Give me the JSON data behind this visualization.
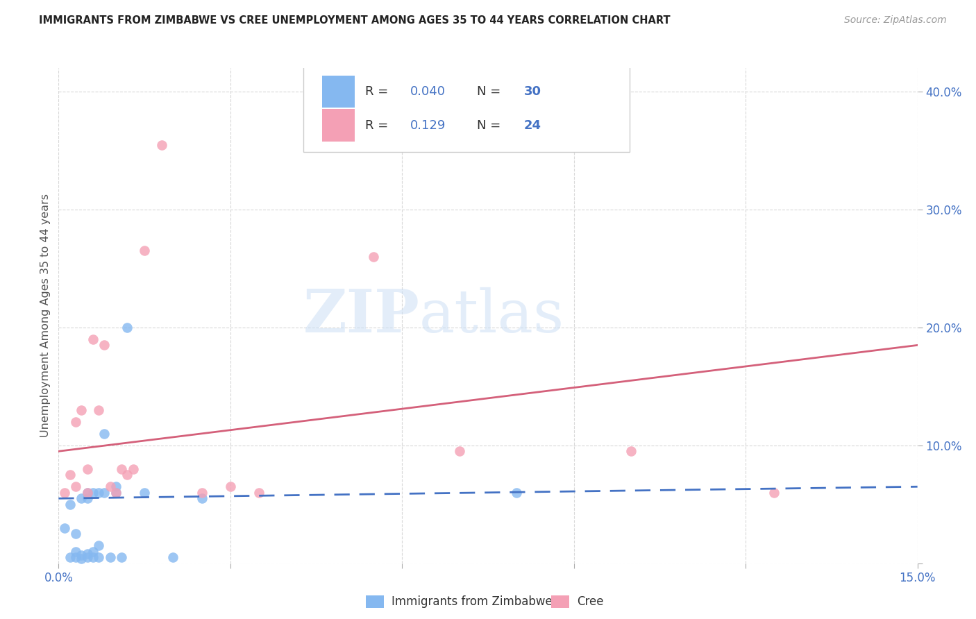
{
  "title": "IMMIGRANTS FROM ZIMBABWE VS CREE UNEMPLOYMENT AMONG AGES 35 TO 44 YEARS CORRELATION CHART",
  "source": "Source: ZipAtlas.com",
  "ylabel": "Unemployment Among Ages 35 to 44 years",
  "xlim": [
    0.0,
    0.15
  ],
  "ylim": [
    0.0,
    0.42
  ],
  "xticks": [
    0.0,
    0.03,
    0.06,
    0.09,
    0.12,
    0.15
  ],
  "yticks": [
    0.0,
    0.1,
    0.2,
    0.3,
    0.4
  ],
  "background_color": "#ffffff",
  "grid_color": "#d8d8d8",
  "watermark_zip": "ZIP",
  "watermark_atlas": "atlas",
  "blue_color": "#85b8f0",
  "pink_color": "#f4a0b5",
  "blue_line_color": "#4472c4",
  "pink_line_color": "#d4607a",
  "legend_R_color": "#4472c4",
  "legend_N_color": "#4472c4",
  "R_blue": "0.040",
  "N_blue": "30",
  "R_pink": "0.129",
  "N_pink": "24",
  "legend_labels": [
    "Immigrants from Zimbabwe",
    "Cree"
  ],
  "blue_scatter_x": [
    0.001,
    0.002,
    0.002,
    0.003,
    0.003,
    0.003,
    0.004,
    0.004,
    0.004,
    0.005,
    0.005,
    0.005,
    0.005,
    0.006,
    0.006,
    0.006,
    0.007,
    0.007,
    0.007,
    0.008,
    0.008,
    0.009,
    0.01,
    0.01,
    0.011,
    0.012,
    0.015,
    0.02,
    0.025,
    0.08
  ],
  "blue_scatter_y": [
    0.03,
    0.005,
    0.05,
    0.005,
    0.01,
    0.025,
    0.004,
    0.007,
    0.055,
    0.005,
    0.008,
    0.055,
    0.06,
    0.005,
    0.01,
    0.06,
    0.005,
    0.015,
    0.06,
    0.06,
    0.11,
    0.005,
    0.06,
    0.065,
    0.005,
    0.2,
    0.06,
    0.005,
    0.055,
    0.06
  ],
  "pink_scatter_x": [
    0.001,
    0.002,
    0.003,
    0.003,
    0.004,
    0.005,
    0.005,
    0.006,
    0.007,
    0.008,
    0.009,
    0.01,
    0.011,
    0.012,
    0.013,
    0.015,
    0.018,
    0.025,
    0.03,
    0.035,
    0.055,
    0.07,
    0.1,
    0.125
  ],
  "pink_scatter_y": [
    0.06,
    0.075,
    0.065,
    0.12,
    0.13,
    0.06,
    0.08,
    0.19,
    0.13,
    0.185,
    0.065,
    0.06,
    0.08,
    0.075,
    0.08,
    0.265,
    0.355,
    0.06,
    0.065,
    0.06,
    0.26,
    0.095,
    0.095,
    0.06
  ],
  "blue_trend_x": [
    0.0,
    0.15
  ],
  "blue_trend_y": [
    0.055,
    0.065
  ],
  "pink_trend_x": [
    0.0,
    0.15
  ],
  "pink_trend_y": [
    0.095,
    0.185
  ]
}
